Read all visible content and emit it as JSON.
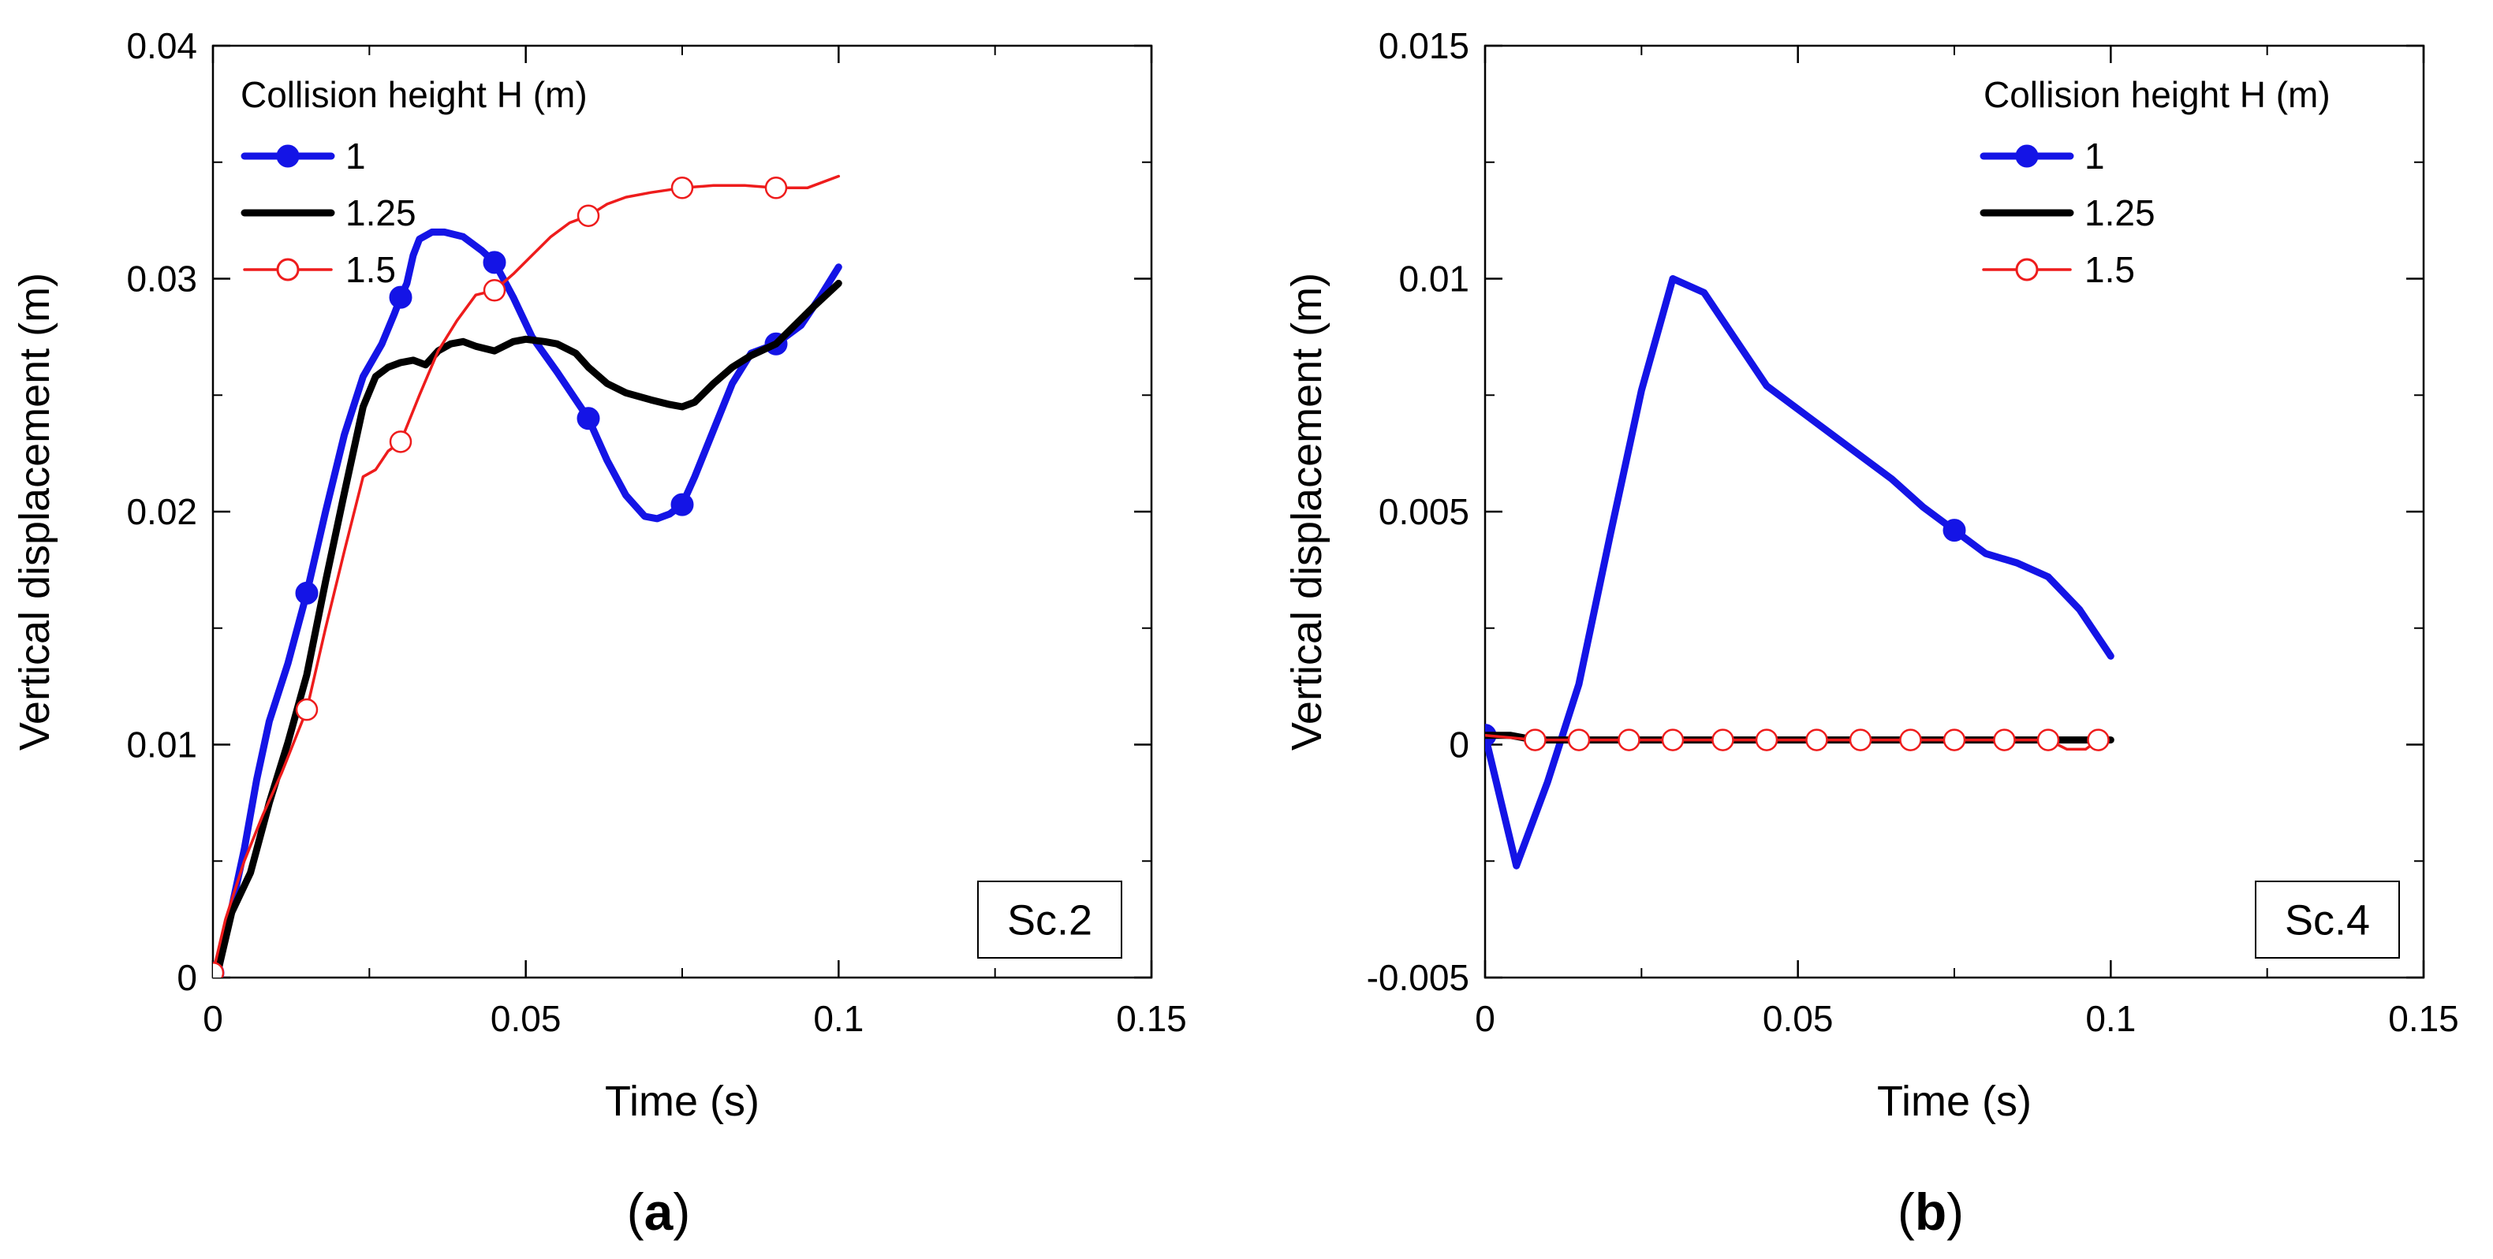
{
  "chart_data": [
    {
      "type": "line",
      "panel_label": "a",
      "scenario": "Sc.2",
      "xlabel": "Time  (s)",
      "ylabel": "Vertical displacement  (m)",
      "xlim": [
        0,
        0.15
      ],
      "ylim": [
        0,
        0.04
      ],
      "xticks": [
        0,
        0.05,
        0.1,
        0.15
      ],
      "yticks": [
        0,
        0.01,
        0.02,
        0.03,
        0.04
      ],
      "xtick_labels": [
        "0",
        "0.05",
        "0.1",
        "0.15"
      ],
      "ytick_labels": [
        "0",
        "0.01",
        "0.02",
        "0.03",
        "0.04"
      ],
      "legend_title": "Collision height H (m)",
      "legend_position": "top-left",
      "series": [
        {
          "name": "1",
          "color": "#1414e6",
          "style": "thick-filled-marker",
          "x": [
            0,
            0.001,
            0.003,
            0.005,
            0.007,
            0.009,
            0.012,
            0.015,
            0.018,
            0.021,
            0.024,
            0.027,
            0.029,
            0.03,
            0.031,
            0.032,
            0.033,
            0.035,
            0.037,
            0.04,
            0.043,
            0.045,
            0.048,
            0.051,
            0.055,
            0.06,
            0.063,
            0.066,
            0.069,
            0.071,
            0.073,
            0.075,
            0.077,
            0.08,
            0.083,
            0.086,
            0.09,
            0.094,
            0.097,
            0.1
          ],
          "y": [
            0.0002,
            0.0005,
            0.003,
            0.0055,
            0.0085,
            0.011,
            0.0135,
            0.0165,
            0.02,
            0.0233,
            0.0258,
            0.0272,
            0.0285,
            0.0292,
            0.0298,
            0.031,
            0.0317,
            0.032,
            0.032,
            0.0318,
            0.0312,
            0.0307,
            0.0292,
            0.0275,
            0.026,
            0.024,
            0.0222,
            0.0207,
            0.0198,
            0.0197,
            0.0199,
            0.0203,
            0.0215,
            0.0235,
            0.0255,
            0.0268,
            0.0272,
            0.028,
            0.0292,
            0.0305
          ],
          "marker_x": [
            0,
            0.015,
            0.03,
            0.045,
            0.06,
            0.075,
            0.09
          ],
          "marker_y": [
            0.0002,
            0.0165,
            0.0292,
            0.0307,
            0.024,
            0.0203,
            0.0272
          ]
        },
        {
          "name": "1.25",
          "color": "#000000",
          "style": "thick-no-marker",
          "x": [
            0,
            0.001,
            0.003,
            0.006,
            0.009,
            0.012,
            0.015,
            0.018,
            0.021,
            0.024,
            0.026,
            0.028,
            0.03,
            0.032,
            0.034,
            0.036,
            0.038,
            0.04,
            0.042,
            0.045,
            0.048,
            0.05,
            0.053,
            0.055,
            0.058,
            0.06,
            0.063,
            0.066,
            0.07,
            0.073,
            0.075,
            0.077,
            0.08,
            0.083,
            0.086,
            0.09,
            0.093,
            0.096,
            0.1
          ],
          "y": [
            0.0002,
            0.0005,
            0.0028,
            0.0045,
            0.0075,
            0.0101,
            0.013,
            0.017,
            0.0208,
            0.0245,
            0.0258,
            0.0262,
            0.0264,
            0.0265,
            0.0263,
            0.0269,
            0.0272,
            0.0273,
            0.0271,
            0.0269,
            0.0273,
            0.0274,
            0.0273,
            0.0272,
            0.0268,
            0.0262,
            0.0255,
            0.0251,
            0.0248,
            0.0246,
            0.0245,
            0.0247,
            0.0255,
            0.0262,
            0.0267,
            0.0272,
            0.028,
            0.0288,
            0.0298
          ]
        },
        {
          "name": "1.5",
          "color": "#ee1c1c",
          "style": "thin-open-marker",
          "x": [
            0,
            0.002,
            0.005,
            0.008,
            0.011,
            0.015,
            0.018,
            0.021,
            0.024,
            0.026,
            0.028,
            0.03,
            0.033,
            0.036,
            0.039,
            0.042,
            0.045,
            0.048,
            0.051,
            0.054,
            0.057,
            0.06,
            0.063,
            0.066,
            0.07,
            0.075,
            0.08,
            0.085,
            0.09,
            0.095,
            0.1
          ],
          "y": [
            0.0002,
            0.0025,
            0.005,
            0.007,
            0.0088,
            0.0115,
            0.015,
            0.0183,
            0.0215,
            0.0218,
            0.0226,
            0.023,
            0.025,
            0.0269,
            0.0282,
            0.0293,
            0.0295,
            0.0302,
            0.031,
            0.0318,
            0.0324,
            0.0327,
            0.0332,
            0.0335,
            0.0337,
            0.0339,
            0.034,
            0.034,
            0.0339,
            0.0339,
            0.0344
          ],
          "marker_x": [
            0,
            0.015,
            0.03,
            0.045,
            0.06,
            0.075,
            0.09
          ],
          "marker_y": [
            0.0002,
            0.0115,
            0.023,
            0.0295,
            0.0327,
            0.0339,
            0.0339
          ]
        }
      ]
    },
    {
      "type": "line",
      "panel_label": "b",
      "scenario": "Sc.4",
      "xlabel": "Time  (s)",
      "ylabel": "Vertical displacement  (m)",
      "xlim": [
        0,
        0.15
      ],
      "ylim": [
        -0.005,
        0.015
      ],
      "xticks": [
        0,
        0.05,
        0.1,
        0.15
      ],
      "yticks": [
        -0.005,
        0,
        0.005,
        0.01,
        0.015
      ],
      "xtick_labels": [
        "0",
        "0.05",
        "0.1",
        "0.15"
      ],
      "ytick_labels": [
        "-0.005",
        "0",
        "0.005",
        "0.01",
        "0.015"
      ],
      "legend_title": "Collision height H (m)",
      "legend_position": "top-right",
      "series": [
        {
          "name": "1",
          "color": "#1414e6",
          "style": "thick-filled-marker",
          "x": [
            0,
            0.005,
            0.01,
            0.015,
            0.02,
            0.025,
            0.03,
            0.035,
            0.04,
            0.045,
            0.05,
            0.055,
            0.06,
            0.065,
            0.07,
            0.075,
            0.08,
            0.085,
            0.09,
            0.095,
            0.1
          ],
          "y": [
            0.0002,
            -0.0026,
            -0.0008,
            0.0013,
            0.0045,
            0.0076,
            0.01,
            0.0097,
            0.0087,
            0.0077,
            0.0072,
            0.0067,
            0.0062,
            0.0057,
            0.0051,
            0.0046,
            0.0041,
            0.0039,
            0.0036,
            0.0029,
            0.0019
          ],
          "marker_x": [
            0,
            0.075
          ],
          "marker_y": [
            0.0002,
            0.0046
          ]
        },
        {
          "name": "1.25",
          "color": "#000000",
          "style": "thick-no-marker",
          "x": [
            0,
            0.004,
            0.008,
            0.012,
            0.016,
            0.02,
            0.03,
            0.04,
            0.05,
            0.06,
            0.07,
            0.08,
            0.09,
            0.1
          ],
          "y": [
            0.0002,
            0.0002,
            0.0001,
            0.0001,
            0.0001,
            0.0001,
            0.0001,
            0.0001,
            0.0001,
            0.0001,
            0.0001,
            0.0001,
            0.0001,
            0.0001
          ]
        },
        {
          "name": "1.5",
          "color": "#ee1c1c",
          "style": "thin-open-marker",
          "x": [
            0,
            0.008,
            0.015,
            0.023,
            0.03,
            0.038,
            0.045,
            0.053,
            0.06,
            0.068,
            0.075,
            0.083,
            0.09,
            0.093,
            0.096,
            0.098
          ],
          "y": [
            0.0002,
            0.0001,
            0.0001,
            0.0001,
            0.0001,
            0.0001,
            0.0001,
            0.0001,
            0.0001,
            0.0001,
            0.0001,
            0.0001,
            0.0001,
            -0.0001,
            -0.0001,
            0.0001
          ],
          "marker_x": [
            0.008,
            0.015,
            0.023,
            0.03,
            0.038,
            0.045,
            0.053,
            0.06,
            0.068,
            0.075,
            0.083,
            0.09,
            0.098
          ],
          "marker_y": [
            0.0001,
            0.0001,
            0.0001,
            0.0001,
            0.0001,
            0.0001,
            0.0001,
            0.0001,
            0.0001,
            0.0001,
            0.0001,
            0.0001,
            0.0001
          ]
        }
      ]
    }
  ]
}
